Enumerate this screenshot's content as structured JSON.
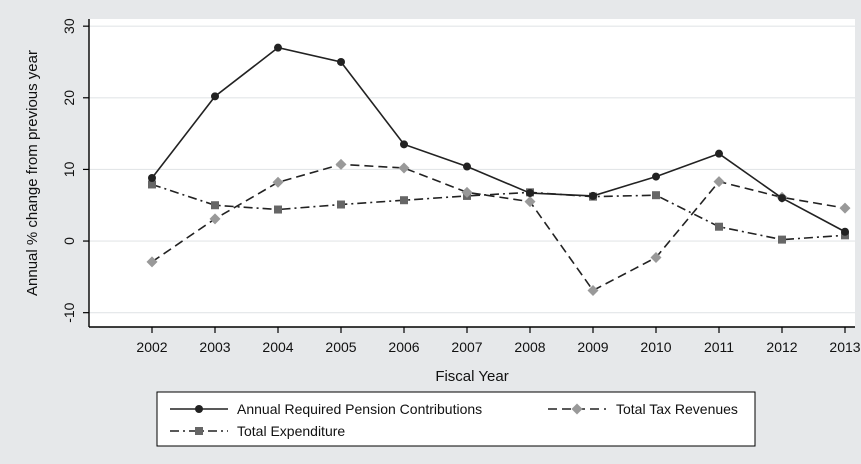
{
  "chart_data": {
    "type": "line",
    "title": "",
    "xlabel": "Fiscal Year",
    "ylabel": "Annual % change from previous year",
    "categories": [
      "2002",
      "2003",
      "2004",
      "2005",
      "2006",
      "2007",
      "2008",
      "2009",
      "2010",
      "2011",
      "2012",
      "2013"
    ],
    "ylim": [
      -12,
      31
    ],
    "yticks": [
      -10,
      0,
      10,
      20,
      30
    ],
    "grid": true,
    "legend_position": "bottom",
    "series": [
      {
        "name": "Annual Required Pension Contributions",
        "marker": "circle",
        "dash": "solid",
        "color": "#222222",
        "values": [
          8.8,
          20.2,
          27.0,
          25.0,
          13.5,
          10.4,
          6.7,
          6.3,
          9.0,
          12.2,
          6.0,
          1.3
        ]
      },
      {
        "name": "Total Tax Revenues",
        "marker": "diamond",
        "dash": "long-dash",
        "color": "#999999",
        "values": [
          -2.9,
          3.1,
          8.2,
          10.7,
          10.2,
          6.8,
          5.5,
          -6.9,
          -2.3,
          8.3,
          6.1,
          4.6
        ]
      },
      {
        "name": "Total Expenditure",
        "marker": "square",
        "dash": "dash-dot",
        "color": "#666666",
        "values": [
          7.9,
          5.0,
          4.4,
          5.1,
          5.7,
          6.3,
          6.8,
          6.2,
          6.4,
          2.0,
          0.2,
          0.8
        ]
      }
    ]
  }
}
